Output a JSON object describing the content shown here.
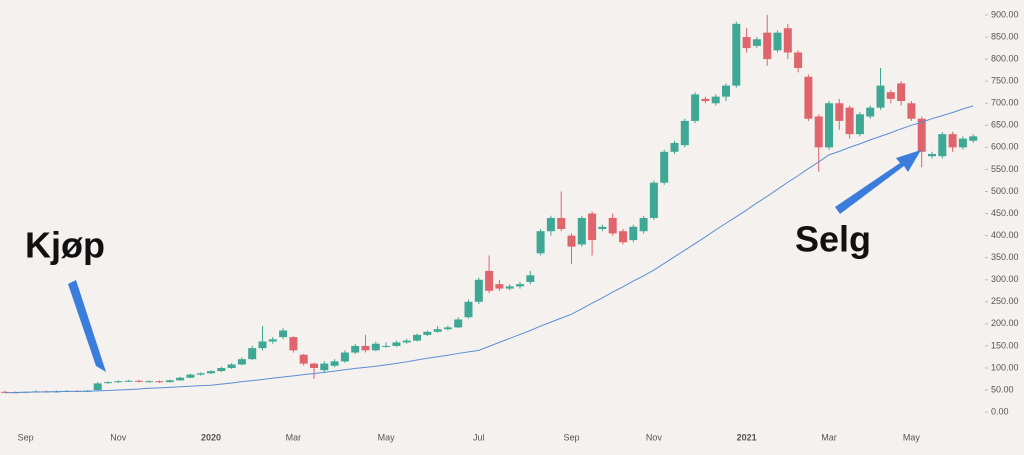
{
  "chart_data": {
    "type": "candlestick",
    "categories": [
      null,
      null,
      "Sep",
      null,
      null,
      null,
      null,
      null,
      null,
      null,
      null,
      "Nov",
      null,
      null,
      null,
      null,
      null,
      null,
      null,
      null,
      "2020",
      null,
      null,
      null,
      null,
      null,
      null,
      null,
      "Mar",
      null,
      null,
      null,
      null,
      null,
      null,
      null,
      null,
      "May",
      null,
      null,
      null,
      null,
      null,
      null,
      null,
      null,
      "Jul",
      null,
      null,
      null,
      null,
      null,
      null,
      null,
      null,
      "Sep",
      null,
      null,
      null,
      null,
      null,
      null,
      null,
      "Nov",
      null,
      null,
      null,
      null,
      null,
      null,
      null,
      null,
      "2021",
      null,
      null,
      null,
      null,
      null,
      null,
      null,
      "Mar",
      null,
      null,
      null,
      null,
      null,
      null,
      null,
      "May",
      null,
      null,
      null,
      null,
      null,
      null
    ],
    "candles": [
      [
        46,
        48,
        43,
        45
      ],
      [
        45,
        47,
        43,
        44
      ],
      [
        44,
        47,
        43,
        46
      ],
      [
        46,
        49,
        45,
        47
      ],
      [
        47,
        49,
        44,
        46
      ],
      [
        46,
        49,
        45,
        47
      ],
      [
        47,
        50,
        46,
        48
      ],
      [
        48,
        50,
        45,
        47
      ],
      [
        47,
        50,
        46,
        48
      ],
      [
        50,
        68,
        49,
        65
      ],
      [
        66,
        70,
        64,
        68
      ],
      [
        68,
        72,
        66,
        70
      ],
      [
        70,
        73,
        68,
        71
      ],
      [
        71,
        73,
        67,
        69
      ],
      [
        69,
        72,
        67,
        70
      ],
      [
        70,
        72,
        66,
        68
      ],
      [
        68,
        74,
        67,
        72
      ],
      [
        72,
        80,
        71,
        78
      ],
      [
        78,
        87,
        77,
        85
      ],
      [
        85,
        90,
        83,
        88
      ],
      [
        88,
        95,
        86,
        93
      ],
      [
        93,
        103,
        91,
        100
      ],
      [
        100,
        111,
        98,
        108
      ],
      [
        108,
        124,
        106,
        120
      ],
      [
        120,
        150,
        118,
        145
      ],
      [
        145,
        195,
        140,
        160
      ],
      [
        160,
        170,
        155,
        165
      ],
      [
        170,
        190,
        165,
        185
      ],
      [
        170,
        172,
        135,
        140
      ],
      [
        130,
        132,
        105,
        110
      ],
      [
        110,
        112,
        75,
        100
      ],
      [
        95,
        115,
        90,
        110
      ],
      [
        105,
        120,
        102,
        115
      ],
      [
        115,
        140,
        112,
        135
      ],
      [
        135,
        155,
        132,
        150
      ],
      [
        150,
        175,
        135,
        140
      ],
      [
        140,
        160,
        138,
        155
      ],
      [
        150,
        158,
        146,
        150
      ],
      [
        150,
        162,
        148,
        158
      ],
      [
        158,
        166,
        155,
        162
      ],
      [
        162,
        178,
        160,
        175
      ],
      [
        175,
        185,
        172,
        182
      ],
      [
        182,
        195,
        180,
        188
      ],
      [
        188,
        196,
        185,
        192
      ],
      [
        192,
        215,
        190,
        210
      ],
      [
        215,
        255,
        212,
        250
      ],
      [
        250,
        305,
        245,
        300
      ],
      [
        320,
        355,
        270,
        275
      ],
      [
        290,
        300,
        275,
        280
      ],
      [
        280,
        290,
        276,
        285
      ],
      [
        285,
        295,
        280,
        290
      ],
      [
        295,
        320,
        290,
        310
      ],
      [
        360,
        415,
        355,
        410
      ],
      [
        410,
        445,
        400,
        440
      ],
      [
        440,
        500,
        410,
        415
      ],
      [
        400,
        405,
        335,
        375
      ],
      [
        380,
        445,
        375,
        440
      ],
      [
        450,
        455,
        355,
        390
      ],
      [
        415,
        425,
        410,
        420
      ],
      [
        440,
        450,
        400,
        405
      ],
      [
        410,
        415,
        380,
        385
      ],
      [
        390,
        425,
        385,
        420
      ],
      [
        410,
        445,
        405,
        440
      ],
      [
        440,
        525,
        435,
        520
      ],
      [
        520,
        595,
        515,
        590
      ],
      [
        590,
        615,
        585,
        610
      ],
      [
        605,
        665,
        600,
        660
      ],
      [
        660,
        725,
        655,
        720
      ],
      [
        710,
        715,
        700,
        705
      ],
      [
        700,
        720,
        695,
        715
      ],
      [
        715,
        745,
        705,
        740
      ],
      [
        740,
        885,
        735,
        880
      ],
      [
        850,
        870,
        815,
        825
      ],
      [
        830,
        850,
        825,
        845
      ],
      [
        860,
        900,
        785,
        800
      ],
      [
        820,
        865,
        815,
        860
      ],
      [
        870,
        880,
        800,
        815
      ],
      [
        815,
        820,
        770,
        780
      ],
      [
        760,
        765,
        660,
        665
      ],
      [
        670,
        675,
        545,
        600
      ],
      [
        600,
        705,
        595,
        700
      ],
      [
        700,
        710,
        640,
        660
      ],
      [
        690,
        695,
        620,
        630
      ],
      [
        630,
        680,
        625,
        675
      ],
      [
        670,
        695,
        665,
        690
      ],
      [
        690,
        780,
        685,
        740
      ],
      [
        725,
        730,
        700,
        710
      ],
      [
        745,
        750,
        695,
        705
      ],
      [
        700,
        705,
        660,
        665
      ],
      [
        665,
        670,
        555,
        590
      ],
      [
        580,
        590,
        575,
        585
      ],
      [
        580,
        635,
        575,
        630
      ],
      [
        630,
        635,
        590,
        600
      ],
      [
        600,
        625,
        595,
        620
      ],
      [
        615,
        630,
        610,
        625
      ]
    ],
    "up_color": "#3fa894",
    "down_color": "#e0646b",
    "ma": {
      "color": "#5b8fd6",
      "values": [
        44,
        44.5,
        45,
        45.5,
        46,
        46.5,
        47,
        47,
        47.5,
        48,
        49,
        50,
        51,
        52.5,
        54,
        55,
        56,
        57.5,
        58.5,
        60,
        61,
        63.5,
        66,
        69,
        71.5,
        74,
        77,
        79.5,
        82,
        85,
        87.5,
        90,
        93,
        96,
        99,
        101.5,
        104,
        107,
        110.5,
        114,
        118,
        122,
        125.5,
        129,
        133,
        136.5,
        140,
        149,
        158,
        167,
        176,
        185,
        195,
        204,
        213,
        222,
        234,
        247,
        259,
        272,
        284,
        297,
        309,
        322,
        337,
        352,
        367,
        382,
        397,
        413,
        428,
        443,
        458,
        474,
        489,
        505,
        521,
        536,
        552,
        567,
        583,
        591,
        600,
        608,
        617,
        625,
        633,
        642,
        650,
        657,
        665,
        672,
        679,
        687,
        694
      ]
    },
    "ylim": [
      -36,
      934
    ],
    "yticks": [
      {
        "value": 0,
        "label": "0.00"
      },
      {
        "value": 50,
        "label": "50.00"
      },
      {
        "value": 100,
        "label": "100.00"
      },
      {
        "value": 150,
        "label": "150.00"
      },
      {
        "value": 200,
        "label": "200.00"
      },
      {
        "value": 250,
        "label": "250.00"
      },
      {
        "value": 300,
        "label": "300.00"
      },
      {
        "value": 350,
        "label": "350.00"
      },
      {
        "value": 400,
        "label": "400.00"
      },
      {
        "value": 450,
        "label": "450.00"
      },
      {
        "value": 500,
        "label": "500.00"
      },
      {
        "value": 550,
        "label": "550.00"
      },
      {
        "value": 600,
        "label": "600.00"
      },
      {
        "value": 650,
        "label": "650.00"
      },
      {
        "value": 700,
        "label": "700.00"
      },
      {
        "value": 750,
        "label": "750.00"
      },
      {
        "value": 800,
        "label": "800.00"
      },
      {
        "value": 850,
        "label": "850.00"
      },
      {
        "value": 900,
        "label": "900.00"
      }
    ],
    "annotations": [
      {
        "text": "Kjøp"
      },
      {
        "text": "Selg"
      }
    ]
  }
}
